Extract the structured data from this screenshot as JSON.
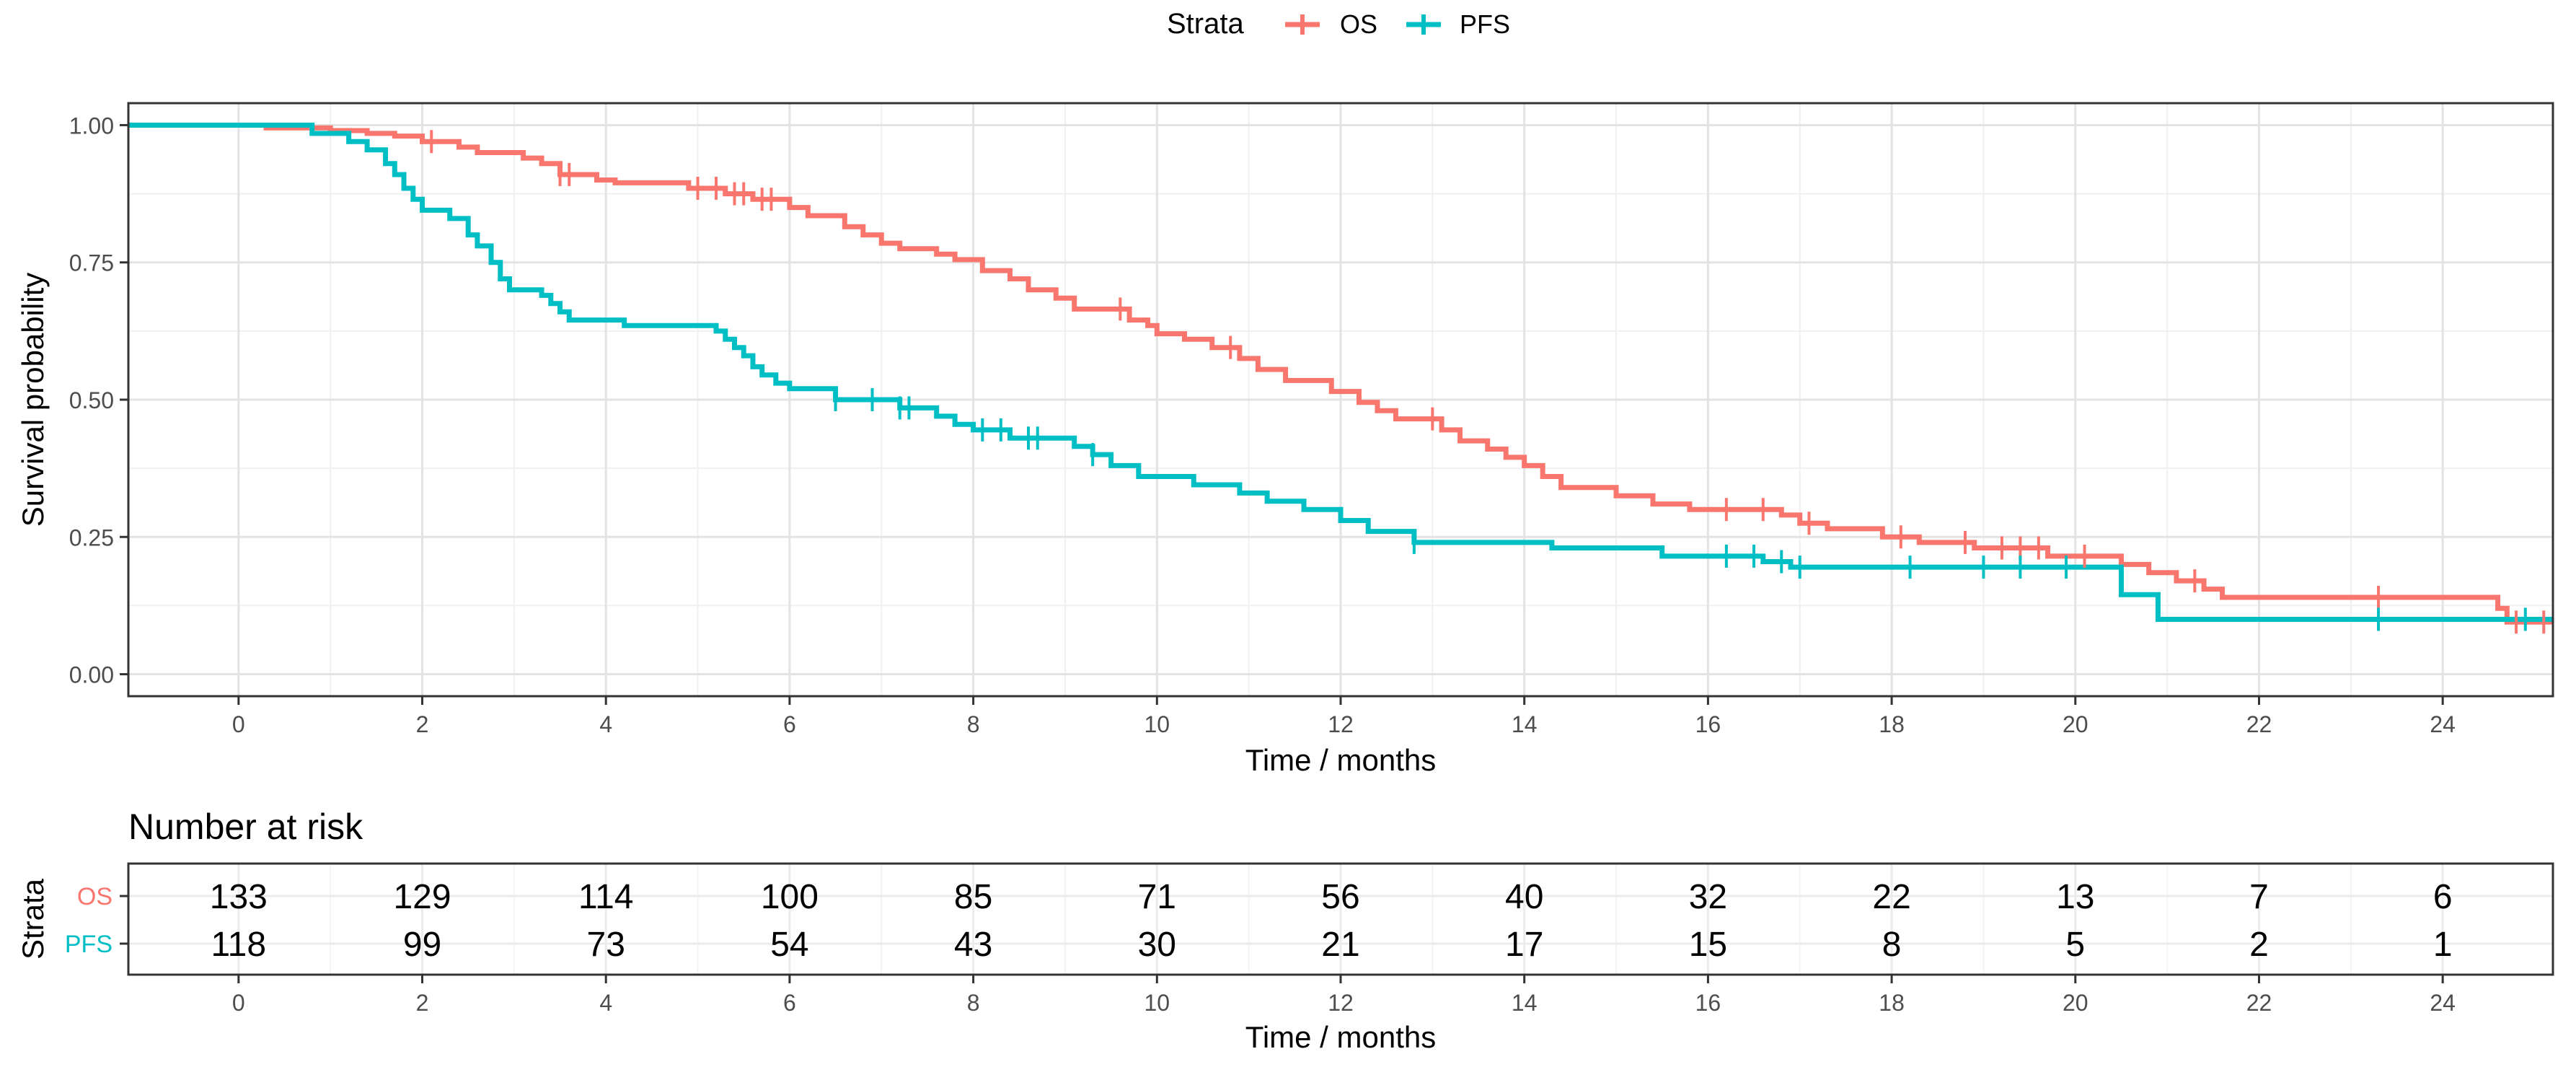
{
  "chart_data": [
    {
      "type": "line",
      "subtype": "kaplan-meier",
      "title": "",
      "xlabel": "Time / months",
      "ylabel": "Survival probability",
      "xlim": [
        -1.2,
        25.2
      ],
      "ylim": [
        -0.04,
        1.04
      ],
      "x_ticks": [
        0,
        2,
        4,
        6,
        8,
        10,
        12,
        14,
        16,
        18,
        20,
        22,
        24
      ],
      "x_tick_labels": [
        "0",
        "2",
        "4",
        "6",
        "8",
        "10",
        "12",
        "14",
        "16",
        "18",
        "20",
        "22",
        "24"
      ],
      "y_ticks": [
        0,
        0.25,
        0.5,
        0.75,
        1.0
      ],
      "y_tick_labels": [
        "0.00",
        "0.25",
        "0.50",
        "0.75",
        "1.00"
      ],
      "grid": true,
      "legend": {
        "title": "Strata",
        "position": "top-center",
        "entries": [
          "OS",
          "PFS"
        ]
      },
      "series": [
        {
          "name": "OS",
          "color": "#F8766D",
          "steps": [
            [
              -1.2,
              1.0
            ],
            [
              0.15,
              1.0
            ],
            [
              0.3,
              0.995
            ],
            [
              1.0,
              0.99
            ],
            [
              1.4,
              0.985
            ],
            [
              1.7,
              0.98
            ],
            [
              2.0,
              0.97
            ],
            [
              2.4,
              0.96
            ],
            [
              2.6,
              0.95
            ],
            [
              3.1,
              0.94
            ],
            [
              3.3,
              0.93
            ],
            [
              3.5,
              0.91
            ],
            [
              3.9,
              0.9
            ],
            [
              4.1,
              0.895
            ],
            [
              4.9,
              0.885
            ],
            [
              5.3,
              0.875
            ],
            [
              5.6,
              0.865
            ],
            [
              6.0,
              0.85
            ],
            [
              6.2,
              0.835
            ],
            [
              6.6,
              0.815
            ],
            [
              6.8,
              0.8
            ],
            [
              7.0,
              0.785
            ],
            [
              7.2,
              0.775
            ],
            [
              7.6,
              0.765
            ],
            [
              7.8,
              0.755
            ],
            [
              8.1,
              0.735
            ],
            [
              8.4,
              0.72
            ],
            [
              8.6,
              0.7
            ],
            [
              8.9,
              0.685
            ],
            [
              9.1,
              0.665
            ],
            [
              9.7,
              0.645
            ],
            [
              9.9,
              0.635
            ],
            [
              10.0,
              0.62
            ],
            [
              10.3,
              0.61
            ],
            [
              10.6,
              0.595
            ],
            [
              10.9,
              0.575
            ],
            [
              11.1,
              0.555
            ],
            [
              11.4,
              0.535
            ],
            [
              11.9,
              0.515
            ],
            [
              12.2,
              0.495
            ],
            [
              12.4,
              0.48
            ],
            [
              12.6,
              0.465
            ],
            [
              13.1,
              0.445
            ],
            [
              13.3,
              0.425
            ],
            [
              13.6,
              0.41
            ],
            [
              13.8,
              0.395
            ],
            [
              14.0,
              0.38
            ],
            [
              14.2,
              0.36
            ],
            [
              14.4,
              0.34
            ],
            [
              15.0,
              0.325
            ],
            [
              15.4,
              0.31
            ],
            [
              15.8,
              0.3
            ],
            [
              16.8,
              0.29
            ],
            [
              17.0,
              0.275
            ],
            [
              17.3,
              0.265
            ],
            [
              17.9,
              0.25
            ],
            [
              18.3,
              0.24
            ],
            [
              18.9,
              0.23
            ],
            [
              19.7,
              0.215
            ],
            [
              20.5,
              0.2
            ],
            [
              20.8,
              0.185
            ],
            [
              21.1,
              0.17
            ],
            [
              21.4,
              0.155
            ],
            [
              21.6,
              0.14
            ],
            [
              24.6,
              0.12
            ],
            [
              24.7,
              0.095
            ],
            [
              25.2,
              0.095
            ]
          ],
          "censored": [
            2.1,
            3.5,
            3.6,
            5.0,
            5.2,
            5.4,
            5.5,
            5.7,
            5.8,
            9.6,
            10.8,
            13.0,
            16.2,
            16.6,
            17.1,
            18.1,
            18.8,
            19.2,
            19.4,
            19.6,
            20.1,
            21.3,
            23.3,
            24.8,
            25.1
          ]
        },
        {
          "name": "PFS",
          "color": "#00BFC4",
          "steps": [
            [
              -1.2,
              1.0
            ],
            [
              0.7,
              1.0
            ],
            [
              0.8,
              0.985
            ],
            [
              1.2,
              0.97
            ],
            [
              1.4,
              0.955
            ],
            [
              1.6,
              0.93
            ],
            [
              1.7,
              0.91
            ],
            [
              1.8,
              0.885
            ],
            [
              1.9,
              0.865
            ],
            [
              2.0,
              0.845
            ],
            [
              2.3,
              0.83
            ],
            [
              2.5,
              0.8
            ],
            [
              2.6,
              0.78
            ],
            [
              2.75,
              0.75
            ],
            [
              2.85,
              0.72
            ],
            [
              2.95,
              0.7
            ],
            [
              3.3,
              0.69
            ],
            [
              3.4,
              0.675
            ],
            [
              3.5,
              0.66
            ],
            [
              3.6,
              0.645
            ],
            [
              4.2,
              0.635
            ],
            [
              5.2,
              0.625
            ],
            [
              5.3,
              0.61
            ],
            [
              5.4,
              0.595
            ],
            [
              5.5,
              0.58
            ],
            [
              5.6,
              0.56
            ],
            [
              5.7,
              0.545
            ],
            [
              5.85,
              0.53
            ],
            [
              6.0,
              0.52
            ],
            [
              6.5,
              0.5
            ],
            [
              7.2,
              0.485
            ],
            [
              7.6,
              0.47
            ],
            [
              7.8,
              0.455
            ],
            [
              8.0,
              0.445
            ],
            [
              8.4,
              0.43
            ],
            [
              9.1,
              0.415
            ],
            [
              9.3,
              0.4
            ],
            [
              9.5,
              0.38
            ],
            [
              9.8,
              0.36
            ],
            [
              10.4,
              0.345
            ],
            [
              10.9,
              0.33
            ],
            [
              11.2,
              0.315
            ],
            [
              11.6,
              0.3
            ],
            [
              12.0,
              0.28
            ],
            [
              12.3,
              0.26
            ],
            [
              12.8,
              0.24
            ],
            [
              14.3,
              0.23
            ],
            [
              15.5,
              0.215
            ],
            [
              16.6,
              0.205
            ],
            [
              16.9,
              0.195
            ],
            [
              20.5,
              0.145
            ],
            [
              20.9,
              0.1
            ],
            [
              25.2,
              0.1
            ]
          ],
          "censored": [
            6.5,
            6.9,
            7.2,
            7.3,
            8.1,
            8.3,
            8.6,
            8.7,
            9.3,
            12.8,
            16.2,
            16.5,
            16.8,
            17.0,
            18.2,
            19.0,
            19.4,
            19.9,
            23.3,
            24.9
          ]
        }
      ]
    },
    {
      "type": "table",
      "title": "Number at risk",
      "xlabel": "Time / months",
      "ylabel": "Strata",
      "columns": [
        0,
        2,
        4,
        6,
        8,
        10,
        12,
        14,
        16,
        18,
        20,
        22,
        24
      ],
      "column_labels": [
        "0",
        "2",
        "4",
        "6",
        "8",
        "10",
        "12",
        "14",
        "16",
        "18",
        "20",
        "22",
        "24"
      ],
      "rows": [
        {
          "name": "OS",
          "color": "#F8766D",
          "values": [
            "133",
            "129",
            "114",
            "100",
            "85",
            "71",
            "56",
            "40",
            "32",
            "22",
            "13",
            "7",
            "6"
          ]
        },
        {
          "name": "PFS",
          "color": "#00BFC4",
          "values": [
            "118",
            "99",
            "73",
            "54",
            "43",
            "30",
            "21",
            "17",
            "15",
            "8",
            "5",
            "2",
            "1"
          ]
        }
      ]
    }
  ]
}
